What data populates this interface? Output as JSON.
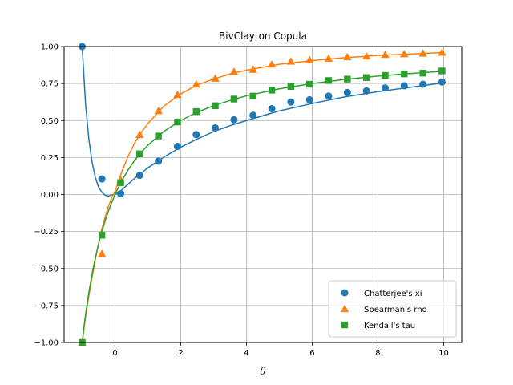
{
  "chart_data": {
    "type": "scatter",
    "title": "BivClayton Copula",
    "xlabel": "θ",
    "ylabel": "",
    "xlim": [
      -1.55,
      10.55
    ],
    "ylim": [
      -1.0,
      1.0
    ],
    "xticks": [
      0,
      2,
      4,
      6,
      8,
      10
    ],
    "yticks": [
      -1.0,
      -0.75,
      -0.5,
      -0.25,
      0.0,
      0.25,
      0.5,
      0.75,
      1.0
    ],
    "grid": true,
    "legend_position": "lower-right",
    "series": [
      {
        "name": "Chatterjee's xi",
        "color": "#1f77b4",
        "marker": "circle",
        "x": [
          -1.0,
          -0.4,
          0.17,
          0.75,
          1.32,
          1.9,
          2.47,
          3.05,
          3.62,
          4.2,
          4.77,
          5.35,
          5.92,
          6.5,
          7.07,
          7.65,
          8.22,
          8.8,
          9.37,
          9.95
        ],
        "y": [
          1.0,
          0.105,
          0.005,
          0.13,
          0.225,
          0.325,
          0.405,
          0.45,
          0.505,
          0.535,
          0.58,
          0.625,
          0.64,
          0.665,
          0.69,
          0.7,
          0.72,
          0.735,
          0.745,
          0.76
        ],
        "curve_x": [
          -1.0,
          -0.9,
          -0.8,
          -0.7,
          -0.6,
          -0.5,
          -0.4,
          -0.3,
          -0.2,
          -0.1,
          0.0,
          0.1,
          0.2,
          0.4,
          0.6,
          0.8,
          1.0,
          1.5,
          2.0,
          2.5,
          3.0,
          3.5,
          4.0,
          5.0,
          6.0,
          7.0,
          8.0,
          9.0,
          10.0
        ],
        "curve_y": [
          1.0,
          0.62,
          0.38,
          0.22,
          0.115,
          0.05,
          0.015,
          -0.005,
          -0.01,
          -0.003,
          0.0,
          0.015,
          0.03,
          0.07,
          0.11,
          0.145,
          0.18,
          0.255,
          0.32,
          0.375,
          0.425,
          0.465,
          0.5,
          0.565,
          0.615,
          0.66,
          0.695,
          0.725,
          0.755
        ]
      },
      {
        "name": "Spearman's rho",
        "color": "#ff7f0e",
        "marker": "triangle",
        "x": [
          -1.0,
          -0.4,
          0.17,
          0.75,
          1.32,
          1.9,
          2.47,
          3.05,
          3.62,
          4.2,
          4.77,
          5.35,
          5.92,
          6.5,
          7.07,
          7.65,
          8.22,
          8.8,
          9.37,
          9.95
        ],
        "y": [
          -1.0,
          -0.4,
          0.1,
          0.405,
          0.565,
          0.675,
          0.745,
          0.785,
          0.83,
          0.845,
          0.88,
          0.9,
          0.91,
          0.92,
          0.93,
          0.935,
          0.945,
          0.95,
          0.955,
          0.96
        ],
        "curve_x": [
          -1.0,
          -0.9,
          -0.8,
          -0.7,
          -0.6,
          -0.5,
          -0.4,
          -0.3,
          -0.2,
          -0.1,
          0.0,
          0.2,
          0.4,
          0.6,
          0.8,
          1.0,
          1.5,
          2.0,
          2.5,
          3.0,
          3.5,
          4.0,
          5.0,
          6.0,
          7.0,
          8.0,
          9.0,
          10.0
        ],
        "curve_y": [
          -1.0,
          -0.83,
          -0.69,
          -0.56,
          -0.44,
          -0.33,
          -0.23,
          -0.15,
          -0.08,
          -0.02,
          0.02,
          0.15,
          0.26,
          0.35,
          0.42,
          0.48,
          0.6,
          0.68,
          0.74,
          0.78,
          0.815,
          0.84,
          0.88,
          0.905,
          0.925,
          0.94,
          0.95,
          0.96
        ]
      },
      {
        "name": "Kendall's tau",
        "color": "#2ca02c",
        "marker": "square",
        "x": [
          -1.0,
          -0.4,
          0.17,
          0.75,
          1.32,
          1.9,
          2.47,
          3.05,
          3.62,
          4.2,
          4.77,
          5.35,
          5.92,
          6.5,
          7.07,
          7.65,
          8.22,
          8.8,
          9.37,
          9.95
        ],
        "y": [
          -1.0,
          -0.275,
          0.08,
          0.275,
          0.395,
          0.49,
          0.56,
          0.6,
          0.645,
          0.665,
          0.705,
          0.73,
          0.745,
          0.77,
          0.78,
          0.79,
          0.805,
          0.815,
          0.82,
          0.835
        ],
        "curve_x": [
          -1.0,
          -0.95,
          -0.9,
          -0.8,
          -0.7,
          -0.6,
          -0.5,
          -0.4,
          -0.3,
          -0.2,
          -0.1,
          0.0,
          0.2,
          0.4,
          0.6,
          0.8,
          1.0,
          1.5,
          2.0,
          2.5,
          3.0,
          3.5,
          4.0,
          5.0,
          6.0,
          7.0,
          8.0,
          9.0,
          10.0
        ],
        "curve_y": [
          -1.0,
          -0.905,
          -0.818,
          -0.667,
          -0.538,
          -0.429,
          -0.333,
          -0.25,
          -0.176,
          -0.111,
          -0.053,
          0.0,
          0.091,
          0.167,
          0.231,
          0.286,
          0.333,
          0.429,
          0.5,
          0.556,
          0.6,
          0.636,
          0.667,
          0.714,
          0.75,
          0.778,
          0.8,
          0.818,
          0.833
        ]
      }
    ]
  }
}
